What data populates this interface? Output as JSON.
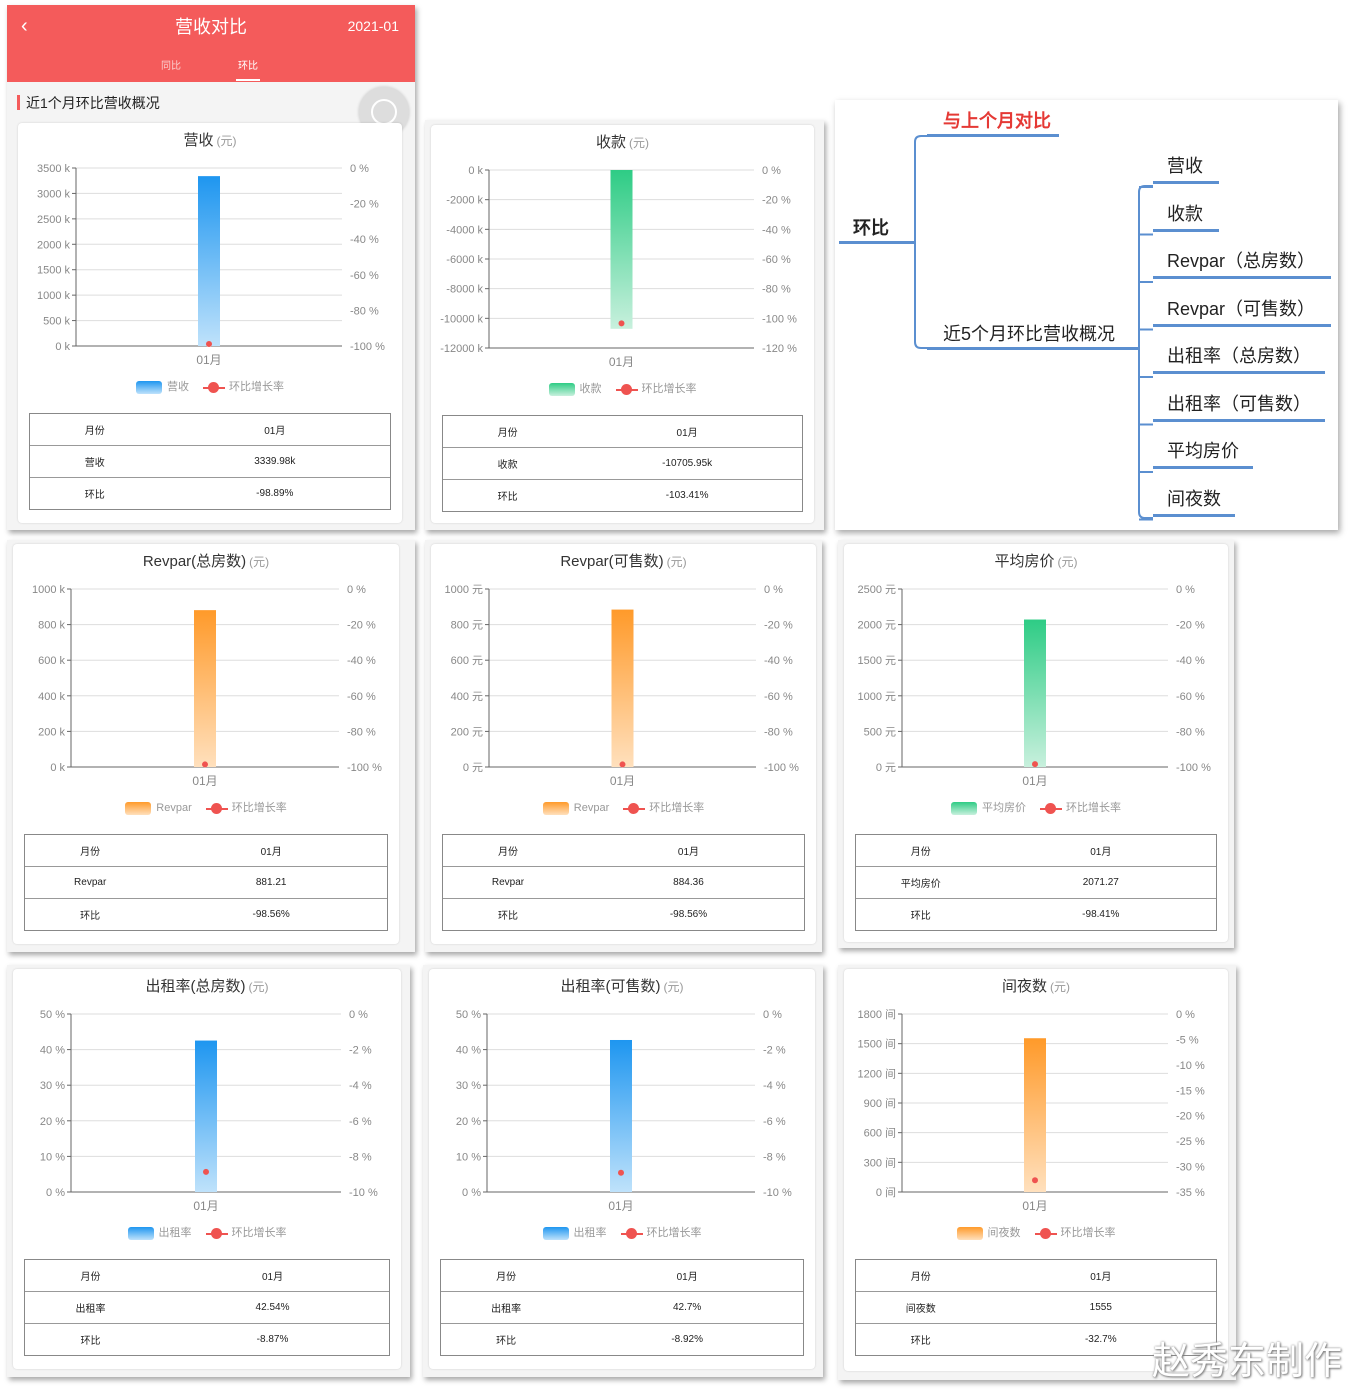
{
  "app": {
    "title": "营收对比",
    "date": "2021-01",
    "tabs": [
      "同比",
      "环比"
    ],
    "active_tab": 1,
    "section_title": "近1个月环比营收概况"
  },
  "mindmap": {
    "root": "环比",
    "branch1": "与上个月对比",
    "branch2": "近5个月环比营收概况",
    "leaves": [
      "营收",
      "收款",
      "Revpar（总房数）",
      "Revpar（可售数）",
      "出租率（总房数）",
      "出租率（可售数）",
      "平均房价",
      "间夜数"
    ]
  },
  "table_header": {
    "month_label": "月份",
    "month_value": "01月",
    "ratio_label": "环比"
  },
  "legend_line_label": "环比增长率",
  "colors": {
    "blue": "#2196f3",
    "green": "#2ecc85",
    "orange": "#ff9a2a",
    "red": "#ef5350",
    "header": "#f45b5b"
  },
  "watermark": "赵秀东制作",
  "cards": [
    {
      "title": "营收",
      "unit": "(元)",
      "legend": "营收",
      "row_label": "营收",
      "value_text": "3339.98k",
      "ratio_text": "-98.89%",
      "chart_data": {
        "type": "bar",
        "categories": [
          "01月"
        ],
        "color": "blue",
        "left_ticks": [
          "3500 k",
          "3000 k",
          "2500 k",
          "2000 k",
          "1500 k",
          "1000 k",
          "500 k",
          "0 k"
        ],
        "right_ticks": [
          "0 %",
          "-20 %",
          "-40 %",
          "-60 %",
          "-80 %",
          "-100 %"
        ],
        "ylim": [
          0,
          3500
        ],
        "y2lim": [
          -100,
          0
        ],
        "values": [
          3339.98
        ],
        "growth": [
          -98.89
        ]
      }
    },
    {
      "title": "收款",
      "unit": "(元)",
      "legend": "收款",
      "row_label": "收款",
      "value_text": "-10705.95k",
      "ratio_text": "-103.41%",
      "chart_data": {
        "type": "bar",
        "categories": [
          "01月"
        ],
        "color": "green",
        "left_ticks": [
          "0 k",
          "-2000 k",
          "-4000 k",
          "-6000 k",
          "-8000 k",
          "-10000 k",
          "-12000 k"
        ],
        "right_ticks": [
          "0 %",
          "-20 %",
          "-40 %",
          "-60 %",
          "-80 %",
          "-100 %",
          "-120 %"
        ],
        "ylim": [
          -12000,
          0
        ],
        "y2lim": [
          -120,
          0
        ],
        "values": [
          -10705.95
        ],
        "growth": [
          -103.41
        ]
      }
    },
    {
      "title": "Revpar(总房数)",
      "unit": "(元)",
      "legend": "Revpar",
      "row_label": "Revpar",
      "value_text": "881.21",
      "ratio_text": "-98.56%",
      "chart_data": {
        "type": "bar",
        "categories": [
          "01月"
        ],
        "color": "orange",
        "left_ticks": [
          "1000 k",
          "800 k",
          "600 k",
          "400 k",
          "200 k",
          "0 k"
        ],
        "right_ticks": [
          "0 %",
          "-20 %",
          "-40 %",
          "-60 %",
          "-80 %",
          "-100 %"
        ],
        "ylim": [
          0,
          1000
        ],
        "y2lim": [
          -100,
          0
        ],
        "values": [
          881.21
        ],
        "growth": [
          -98.56
        ]
      }
    },
    {
      "title": "Revpar(可售数)",
      "unit": "(元)",
      "legend": "Revpar",
      "row_label": "Revpar",
      "value_text": "884.36",
      "ratio_text": "-98.56%",
      "chart_data": {
        "type": "bar",
        "categories": [
          "01月"
        ],
        "color": "orange",
        "left_ticks": [
          "1000 元",
          "800 元",
          "600 元",
          "400 元",
          "200 元",
          "0 元"
        ],
        "right_ticks": [
          "0 %",
          "-20 %",
          "-40 %",
          "-60 %",
          "-80 %",
          "-100 %"
        ],
        "ylim": [
          0,
          1000
        ],
        "y2lim": [
          -100,
          0
        ],
        "values": [
          884.36
        ],
        "growth": [
          -98.56
        ]
      }
    },
    {
      "title": "平均房价",
      "unit": "(元)",
      "legend": "平均房价",
      "row_label": "平均房价",
      "value_text": "2071.27",
      "ratio_text": "-98.41%",
      "chart_data": {
        "type": "bar",
        "categories": [
          "01月"
        ],
        "color": "green",
        "left_ticks": [
          "2500 元",
          "2000 元",
          "1500 元",
          "1000 元",
          "500 元",
          "0 元"
        ],
        "right_ticks": [
          "0 %",
          "-20 %",
          "-40 %",
          "-60 %",
          "-80 %",
          "-100 %"
        ],
        "ylim": [
          0,
          2500
        ],
        "y2lim": [
          -100,
          0
        ],
        "values": [
          2071.27
        ],
        "growth": [
          -98.41
        ]
      }
    },
    {
      "title": "出租率(总房数)",
      "unit": "(元)",
      "legend": "出租率",
      "row_label": "出租率",
      "value_text": "42.54%",
      "ratio_text": "-8.87%",
      "chart_data": {
        "type": "bar",
        "categories": [
          "01月"
        ],
        "color": "blue",
        "left_ticks": [
          "50 %",
          "40 %",
          "30 %",
          "20 %",
          "10 %",
          "0 %"
        ],
        "right_ticks": [
          "0 %",
          "-2 %",
          "-4 %",
          "-6 %",
          "-8 %",
          "-10 %"
        ],
        "ylim": [
          0,
          50
        ],
        "y2lim": [
          -10,
          0
        ],
        "values": [
          42.54
        ],
        "growth": [
          -8.87
        ]
      }
    },
    {
      "title": "出租率(可售数)",
      "unit": "(元)",
      "legend": "出租率",
      "row_label": "出租率",
      "value_text": "42.7%",
      "ratio_text": "-8.92%",
      "chart_data": {
        "type": "bar",
        "categories": [
          "01月"
        ],
        "color": "blue",
        "left_ticks": [
          "50 %",
          "40 %",
          "30 %",
          "20 %",
          "10 %",
          "0 %"
        ],
        "right_ticks": [
          "0 %",
          "-2 %",
          "-4 %",
          "-6 %",
          "-8 %",
          "-10 %"
        ],
        "ylim": [
          0,
          50
        ],
        "y2lim": [
          -10,
          0
        ],
        "values": [
          42.7
        ],
        "growth": [
          -8.92
        ]
      }
    },
    {
      "title": "间夜数",
      "unit": "(元)",
      "legend": "间夜数",
      "row_label": "间夜数",
      "value_text": "1555",
      "ratio_text": "-32.7%",
      "chart_data": {
        "type": "bar",
        "categories": [
          "01月"
        ],
        "color": "orange",
        "left_ticks": [
          "1800 间",
          "1500 间",
          "1200 间",
          "900 间",
          "600 间",
          "300 间",
          "0 间"
        ],
        "right_ticks": [
          "0 %",
          "-5 %",
          "-10 %",
          "-15 %",
          "-20 %",
          "-25 %",
          "-30 %",
          "-35 %"
        ],
        "ylim": [
          0,
          1800
        ],
        "y2lim": [
          -35,
          0
        ],
        "values": [
          1555
        ],
        "growth": [
          -32.7
        ]
      }
    }
  ]
}
